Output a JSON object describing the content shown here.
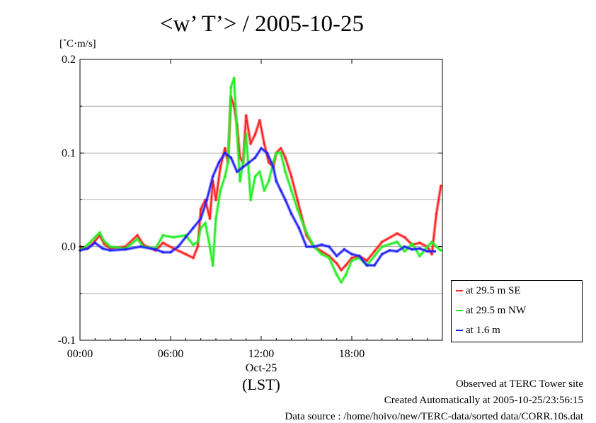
{
  "title": "<w’ T’> / 2005-10-25",
  "unit_label": "[˚C·m/s]",
  "footer": {
    "line1": "Observed at TERC Tower site",
    "line2": "Created Automatically at 2005-10-25/23:56:15",
    "line3": "Data source : /home/hoivo/new/TERC-data/sorted  data/CORR.10s.dat"
  },
  "legend": [
    {
      "label": "at 29.5 m SE",
      "color": "#ff2020"
    },
    {
      "label": "at 29.5 m NW",
      "color": "#20ee20"
    },
    {
      "label": "at 1.6 m",
      "color": "#2020ff"
    }
  ],
  "chart_data": {
    "type": "line",
    "xlabel": "(LST)",
    "date_label": "Oct-25",
    "x_ticks": [
      0,
      6,
      12,
      18
    ],
    "x_tick_labels": [
      "00:00",
      "06:00",
      "12:00",
      "18:00"
    ],
    "y_ticks": [
      -0.1,
      0.0,
      0.1,
      0.2
    ],
    "y_tick_labels": [
      "-0.1",
      "0.0",
      "0.1",
      "0.2"
    ],
    "xlim": [
      0,
      24
    ],
    "ylim": [
      -0.1,
      0.2
    ],
    "grid": "horizontal",
    "legend_position": "right-bottom",
    "series": [
      {
        "name": "at 29.5 m SE",
        "color": "#ff2020",
        "x": [
          0.0,
          0.5,
          1.0,
          1.3,
          1.6,
          2.0,
          3.0,
          3.8,
          4.2,
          5.0,
          5.5,
          6.2,
          7.0,
          7.5,
          7.8,
          8.0,
          8.3,
          8.6,
          8.8,
          9.0,
          9.3,
          9.6,
          9.8,
          10.0,
          10.2,
          10.4,
          10.6,
          10.8,
          11.0,
          11.3,
          11.6,
          11.9,
          12.2,
          12.5,
          12.8,
          13.0,
          13.3,
          13.6,
          14.0,
          14.4,
          15.0,
          15.5,
          16.0,
          16.5,
          17.0,
          17.3,
          17.6,
          18.0,
          18.5,
          19.0,
          19.5,
          20.0,
          21.0,
          21.5,
          22.0,
          22.5,
          23.0,
          23.3,
          23.6,
          23.9
        ],
        "y": [
          0.0,
          -0.002,
          0.006,
          0.012,
          0.003,
          -0.002,
          0.0,
          0.012,
          0.002,
          -0.004,
          0.004,
          -0.002,
          -0.008,
          -0.012,
          0.0,
          0.04,
          0.05,
          0.03,
          0.07,
          0.05,
          0.085,
          0.105,
          0.09,
          0.16,
          0.15,
          0.13,
          0.095,
          0.09,
          0.14,
          0.11,
          0.12,
          0.135,
          0.11,
          0.09,
          0.085,
          0.1,
          0.105,
          0.095,
          0.075,
          0.05,
          0.012,
          0.0,
          -0.005,
          -0.01,
          -0.018,
          -0.025,
          -0.02,
          -0.012,
          -0.01,
          -0.015,
          -0.005,
          0.005,
          0.014,
          0.01,
          0.002,
          0.004,
          0.0,
          -0.008,
          0.035,
          0.065
        ]
      },
      {
        "name": "at 29.5 m NW",
        "color": "#20ee20",
        "x": [
          0.0,
          0.5,
          1.0,
          1.3,
          1.6,
          2.0,
          3.0,
          3.8,
          4.2,
          5.0,
          5.5,
          6.2,
          7.0,
          7.5,
          7.8,
          8.0,
          8.3,
          8.6,
          8.8,
          9.0,
          9.3,
          9.6,
          9.8,
          10.0,
          10.2,
          10.4,
          10.6,
          10.8,
          11.0,
          11.3,
          11.6,
          11.9,
          12.2,
          12.5,
          12.8,
          13.0,
          13.3,
          13.6,
          14.0,
          14.4,
          15.0,
          15.5,
          16.0,
          16.5,
          17.0,
          17.3,
          17.6,
          18.0,
          18.5,
          19.0,
          19.5,
          20.0,
          21.0,
          21.5,
          22.0,
          22.5,
          23.0,
          23.3,
          23.6,
          23.9
        ],
        "y": [
          -0.004,
          0.002,
          0.01,
          0.015,
          0.006,
          0.0,
          -0.002,
          0.008,
          0.0,
          -0.002,
          0.012,
          0.01,
          0.012,
          0.002,
          0.005,
          0.02,
          0.025,
          0.0,
          -0.02,
          0.03,
          0.06,
          0.075,
          0.09,
          0.17,
          0.18,
          0.12,
          0.07,
          0.09,
          0.12,
          0.05,
          0.075,
          0.08,
          0.06,
          0.07,
          0.09,
          0.1,
          0.1,
          0.08,
          0.06,
          0.04,
          0.015,
          0.0,
          -0.008,
          -0.012,
          -0.03,
          -0.038,
          -0.03,
          -0.015,
          -0.012,
          -0.02,
          -0.01,
          0.0,
          0.005,
          -0.005,
          0.003,
          -0.01,
          0.0,
          0.005,
          0.0,
          -0.004
        ]
      },
      {
        "name": "at 1.6 m",
        "color": "#2020ff",
        "x": [
          0.0,
          0.5,
          1.0,
          1.5,
          2.0,
          3.0,
          4.0,
          5.0,
          5.5,
          6.0,
          6.5,
          7.0,
          7.5,
          8.0,
          8.4,
          8.8,
          9.2,
          9.6,
          10.0,
          10.4,
          10.8,
          11.2,
          11.6,
          12.0,
          12.4,
          12.8,
          13.0,
          13.3,
          13.6,
          14.0,
          14.5,
          15.0,
          15.5,
          16.0,
          16.5,
          17.0,
          17.5,
          18.0,
          18.5,
          19.0,
          19.5,
          20.0,
          20.5,
          21.0,
          21.5,
          22.0,
          22.5,
          23.0,
          23.5
        ],
        "y": [
          -0.004,
          -0.002,
          0.004,
          -0.002,
          -0.004,
          -0.003,
          0.0,
          -0.003,
          -0.006,
          -0.006,
          0.0,
          0.01,
          0.02,
          0.03,
          0.05,
          0.075,
          0.09,
          0.1,
          0.095,
          0.08,
          0.085,
          0.09,
          0.095,
          0.105,
          0.1,
          0.085,
          0.07,
          0.06,
          0.05,
          0.035,
          0.02,
          0.0,
          0.0,
          0.002,
          0.0,
          -0.01,
          -0.003,
          -0.008,
          -0.01,
          -0.02,
          -0.02,
          -0.008,
          -0.004,
          -0.005,
          0.0,
          -0.003,
          -0.002,
          -0.005,
          -0.005
        ]
      }
    ]
  }
}
